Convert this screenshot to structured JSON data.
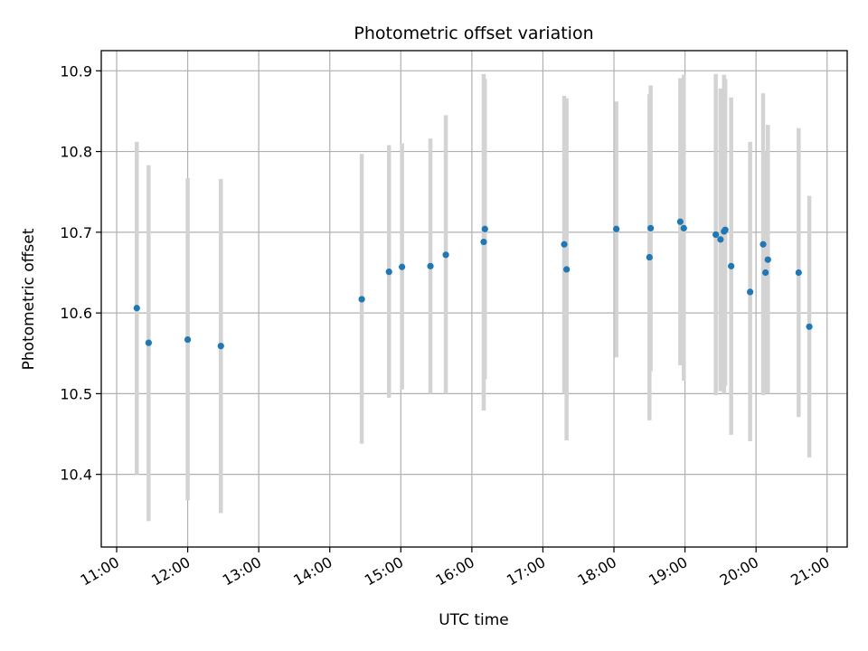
{
  "chart_data": {
    "type": "scatter",
    "title": "Photometric offset variation",
    "xlabel": "UTC time",
    "ylabel": "Photometric offset",
    "xlim": [
      "10:47",
      "21:17"
    ],
    "ylim": [
      10.31,
      10.925
    ],
    "grid": true,
    "x_ticks": [
      "11:00",
      "12:00",
      "13:00",
      "14:00",
      "15:00",
      "16:00",
      "17:00",
      "18:00",
      "19:00",
      "20:00",
      "21:00"
    ],
    "y_ticks": [
      10.4,
      10.5,
      10.6,
      10.7,
      10.8,
      10.9
    ],
    "y_tick_labels": [
      "10.4",
      "10.5",
      "10.6",
      "10.7",
      "10.8",
      "10.9"
    ],
    "colors": {
      "points": "#1f77b4",
      "error_bars": "#d3d3d3",
      "grid": "#b0b0b0"
    },
    "points": [
      {
        "x": "11:17",
        "y": 10.606,
        "ylo": 10.4,
        "yhi": 10.812
      },
      {
        "x": "11:27",
        "y": 10.563,
        "ylo": 10.342,
        "yhi": 10.783
      },
      {
        "x": "12:00",
        "y": 10.567,
        "ylo": 10.368,
        "yhi": 10.767
      },
      {
        "x": "12:28",
        "y": 10.559,
        "ylo": 10.352,
        "yhi": 10.766
      },
      {
        "x": "14:27",
        "y": 10.617,
        "ylo": 10.438,
        "yhi": 10.797
      },
      {
        "x": "14:50",
        "y": 10.651,
        "ylo": 10.495,
        "yhi": 10.808
      },
      {
        "x": "15:01",
        "y": 10.657,
        "ylo": 10.505,
        "yhi": 10.81
      },
      {
        "x": "15:25",
        "y": 10.658,
        "ylo": 10.5,
        "yhi": 10.816
      },
      {
        "x": "15:38",
        "y": 10.672,
        "ylo": 10.5,
        "yhi": 10.845
      },
      {
        "x": "16:10",
        "y": 10.688,
        "ylo": 10.479,
        "yhi": 10.896
      },
      {
        "x": "16:11",
        "y": 10.704,
        "ylo": 10.518,
        "yhi": 10.89
      },
      {
        "x": "17:18",
        "y": 10.685,
        "ylo": 10.5,
        "yhi": 10.869
      },
      {
        "x": "17:20",
        "y": 10.654,
        "ylo": 10.442,
        "yhi": 10.866
      },
      {
        "x": "18:02",
        "y": 10.704,
        "ylo": 10.545,
        "yhi": 10.862
      },
      {
        "x": "18:30",
        "y": 10.669,
        "ylo": 10.467,
        "yhi": 10.871
      },
      {
        "x": "18:31",
        "y": 10.705,
        "ylo": 10.528,
        "yhi": 10.882
      },
      {
        "x": "18:56",
        "y": 10.713,
        "ylo": 10.535,
        "yhi": 10.891
      },
      {
        "x": "18:59",
        "y": 10.705,
        "ylo": 10.516,
        "yhi": 10.895
      },
      {
        "x": "19:26",
        "y": 10.697,
        "ylo": 10.498,
        "yhi": 10.896
      },
      {
        "x": "19:30",
        "y": 10.691,
        "ylo": 10.503,
        "yhi": 10.878
      },
      {
        "x": "19:33",
        "y": 10.701,
        "ylo": 10.5,
        "yhi": 10.895
      },
      {
        "x": "19:34",
        "y": 10.703,
        "ylo": 10.51,
        "yhi": 10.89
      },
      {
        "x": "19:39",
        "y": 10.658,
        "ylo": 10.449,
        "yhi": 10.867
      },
      {
        "x": "19:55",
        "y": 10.626,
        "ylo": 10.441,
        "yhi": 10.812
      },
      {
        "x": "20:06",
        "y": 10.685,
        "ylo": 10.498,
        "yhi": 10.872
      },
      {
        "x": "20:08",
        "y": 10.65,
        "ylo": 10.5,
        "yhi": 10.8
      },
      {
        "x": "20:10",
        "y": 10.666,
        "ylo": 10.5,
        "yhi": 10.833
      },
      {
        "x": "20:36",
        "y": 10.65,
        "ylo": 10.471,
        "yhi": 10.829
      },
      {
        "x": "20:45",
        "y": 10.583,
        "ylo": 10.421,
        "yhi": 10.745
      }
    ]
  }
}
